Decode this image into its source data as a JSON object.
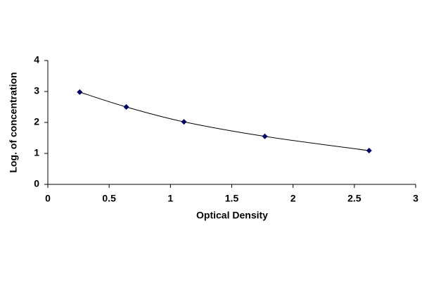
{
  "chart_data": {
    "type": "scatter",
    "x_label": "Optical Density",
    "y_label": "Log. of concentration",
    "x": [
      0.26,
      0.64,
      1.11,
      1.77,
      2.62
    ],
    "values": [
      2.98,
      2.5,
      2.02,
      1.55,
      1.09
    ],
    "color": "#000066",
    "line_color": "#000000",
    "smooth_line": true,
    "xlim": [
      0,
      3
    ],
    "xticks": [
      0,
      0.5,
      1,
      1.5,
      2,
      2.5,
      3
    ],
    "ylim": [
      0,
      4
    ],
    "yticks": [
      0,
      1,
      2,
      3,
      4
    ],
    "grid": false
  }
}
